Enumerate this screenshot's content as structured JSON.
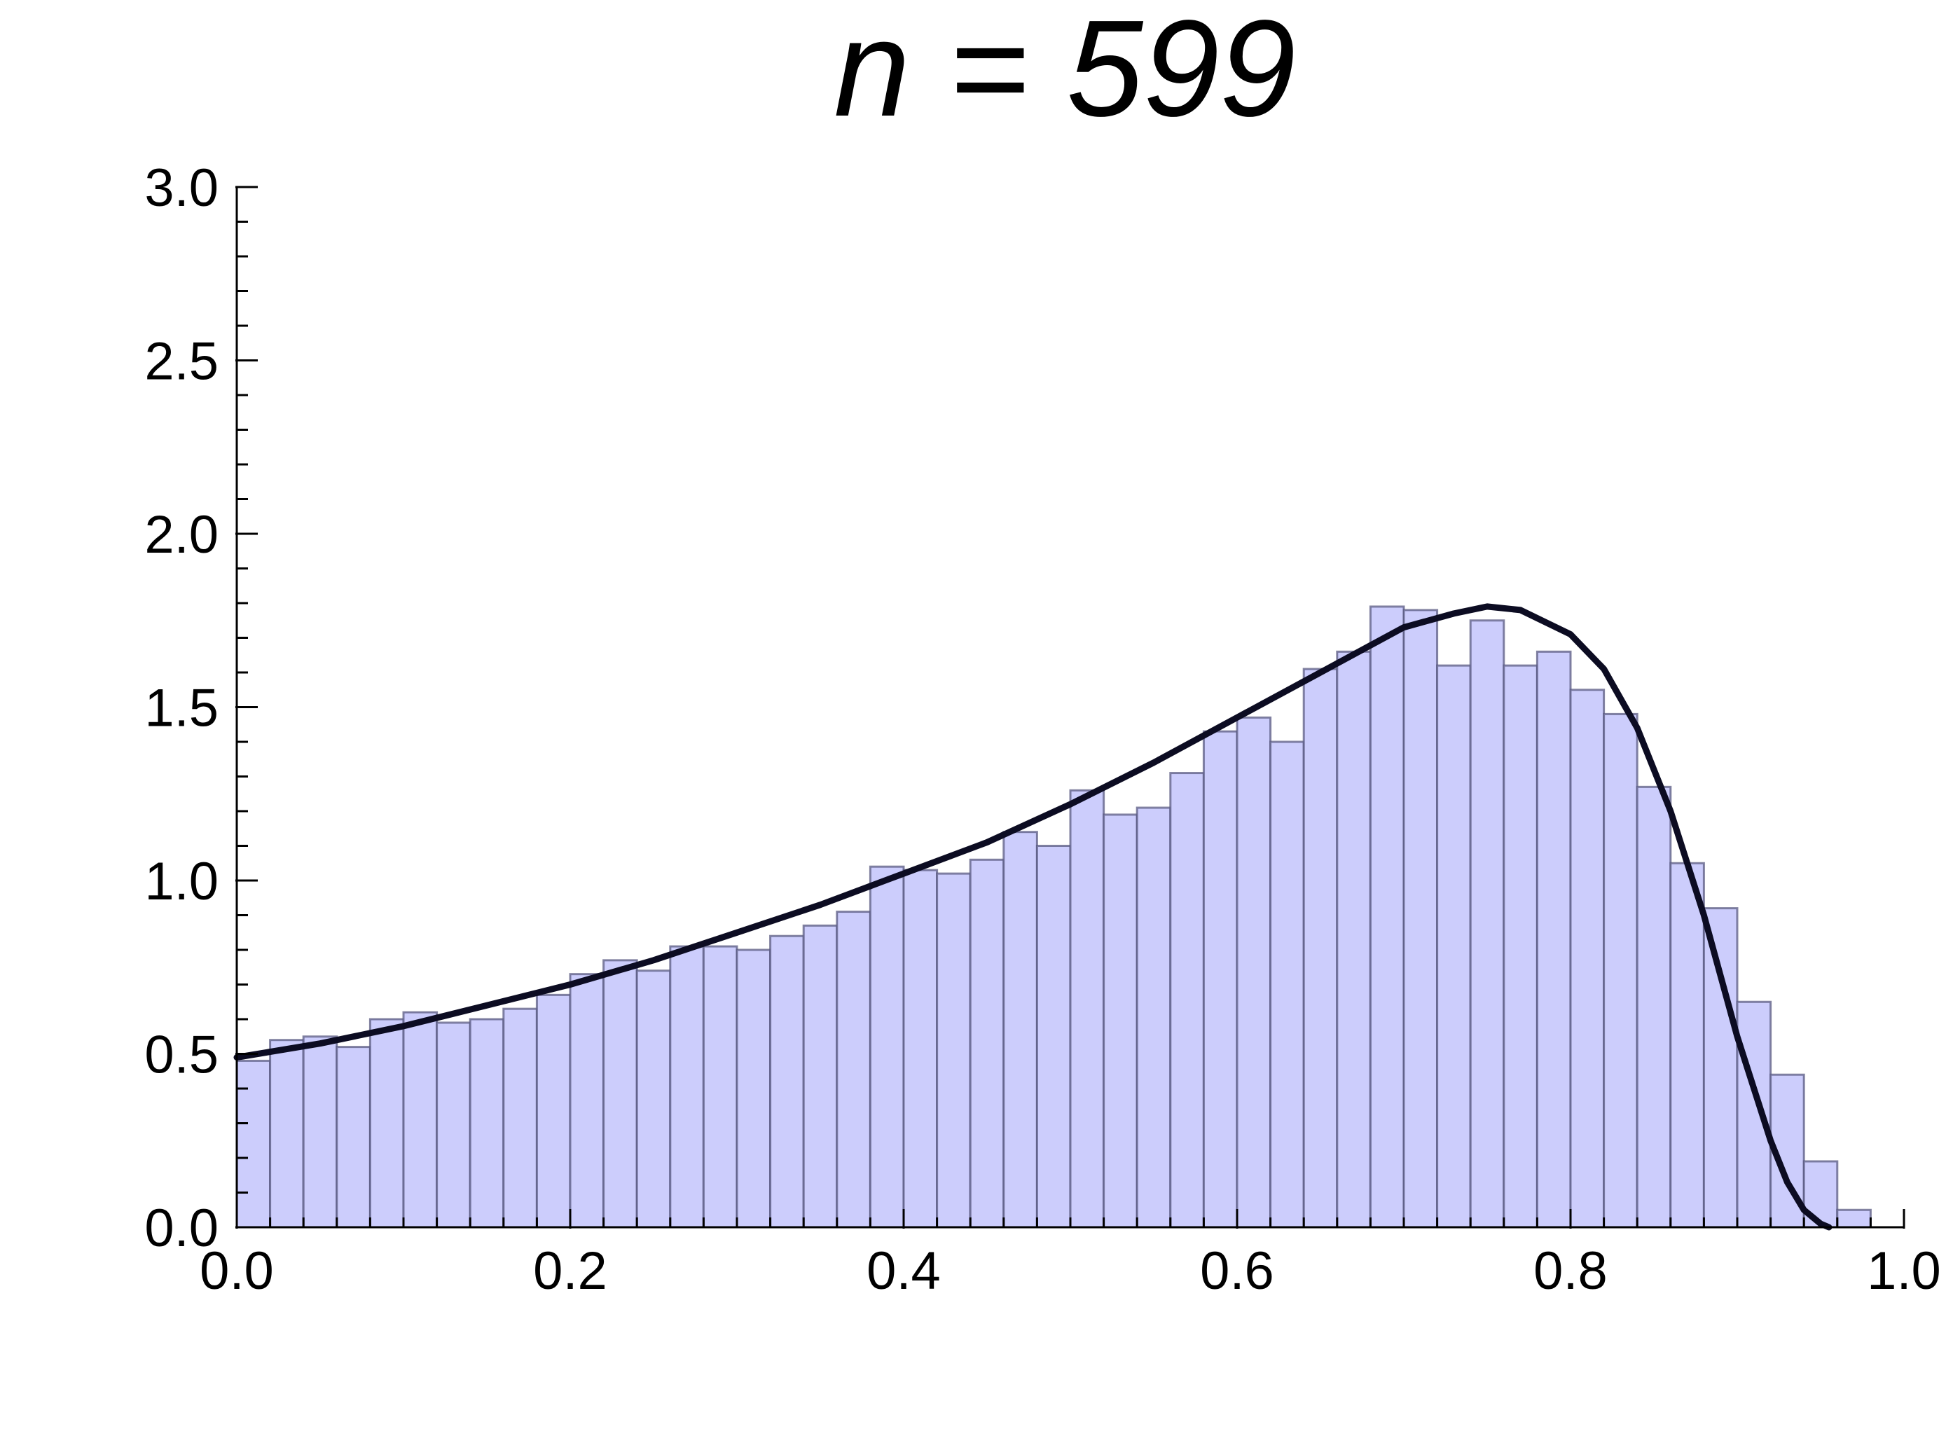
{
  "chart_data": {
    "type": "histogram",
    "title": "n = 599",
    "xlabel": "",
    "ylabel": "",
    "xlim": [
      0.0,
      1.0
    ],
    "ylim": [
      0.0,
      3.0
    ],
    "x_ticks": [
      0.0,
      0.2,
      0.4,
      0.6,
      0.8,
      1.0
    ],
    "x_tick_labels": [
      "0.0",
      "0.2",
      "0.4",
      "0.6",
      "0.8",
      "1.0"
    ],
    "y_ticks": [
      0.0,
      0.5,
      1.0,
      1.5,
      2.0,
      2.5,
      3.0
    ],
    "y_tick_labels": [
      "0.0",
      "0.5",
      "1.0",
      "1.5",
      "2.0",
      "2.5",
      "3.0"
    ],
    "bin_width": 0.02,
    "bin_starts": [
      0.0,
      0.02,
      0.04,
      0.06,
      0.08,
      0.1,
      0.12,
      0.14,
      0.16,
      0.18,
      0.2,
      0.22,
      0.24,
      0.26,
      0.28,
      0.3,
      0.32,
      0.34,
      0.36,
      0.38,
      0.4,
      0.42,
      0.44,
      0.46,
      0.48,
      0.5,
      0.52,
      0.54,
      0.56,
      0.58,
      0.6,
      0.62,
      0.64,
      0.66,
      0.68,
      0.7,
      0.72,
      0.74,
      0.76,
      0.78,
      0.8,
      0.82,
      0.84,
      0.86,
      0.88,
      0.9,
      0.92,
      0.94,
      0.96,
      0.98
    ],
    "densities": [
      0.48,
      0.54,
      0.55,
      0.52,
      0.6,
      0.62,
      0.59,
      0.6,
      0.63,
      0.67,
      0.73,
      0.77,
      0.74,
      0.81,
      0.81,
      0.8,
      0.84,
      0.87,
      0.91,
      1.04,
      1.03,
      1.02,
      1.06,
      1.14,
      1.1,
      1.26,
      1.19,
      1.21,
      1.31,
      1.43,
      1.47,
      1.4,
      1.61,
      1.66,
      1.79,
      1.78,
      1.62,
      1.75,
      1.62,
      1.66,
      1.55,
      1.48,
      1.27,
      1.05,
      0.92,
      0.65,
      0.44,
      0.19,
      0.05,
      0.0
    ],
    "curve": {
      "x": [
        0.0,
        0.05,
        0.1,
        0.15,
        0.2,
        0.25,
        0.3,
        0.35,
        0.4,
        0.45,
        0.5,
        0.55,
        0.6,
        0.65,
        0.7,
        0.73,
        0.75,
        0.77,
        0.8,
        0.82,
        0.84,
        0.86,
        0.88,
        0.9,
        0.92,
        0.93,
        0.94,
        0.95,
        0.955
      ],
      "y": [
        0.49,
        0.53,
        0.58,
        0.64,
        0.7,
        0.77,
        0.85,
        0.93,
        1.02,
        1.11,
        1.22,
        1.34,
        1.47,
        1.6,
        1.73,
        1.77,
        1.79,
        1.78,
        1.71,
        1.61,
        1.44,
        1.2,
        0.9,
        0.55,
        0.25,
        0.13,
        0.05,
        0.01,
        0.0
      ]
    },
    "colors": {
      "bar_fill": "#cccdfc",
      "bar_edge": "#5a5a82",
      "curve": "#0c0c22"
    },
    "grid": false,
    "legend": "none"
  }
}
